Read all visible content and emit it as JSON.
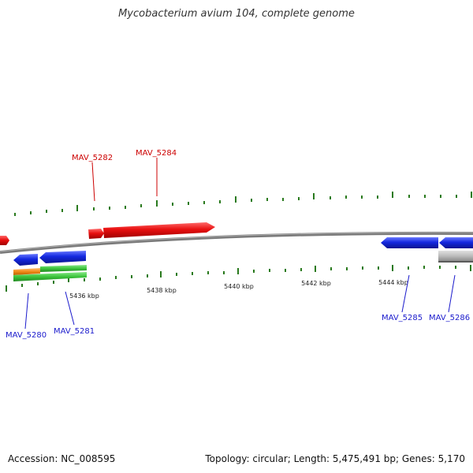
{
  "title": "Mycobacterium avium 104, complete genome",
  "footer": {
    "accession": "Accession: NC_008595",
    "summary": "Topology: circular; Length: 5,475,491 bp; Genes: 5,170"
  },
  "colors": {
    "forward_gene": "#e81010",
    "reverse_gene": "#1428e0",
    "cds_green": "#3cc43c",
    "cds_orange": "#f08a18",
    "cds_gray": "#b8b8b8",
    "backbone": "#8a8a8a",
    "tick": "#2a7a1e",
    "forward_label": "#cc0000",
    "reverse_label": "#1a1acc"
  },
  "scale_labels": [
    "5436 kbp",
    "5438 kbp",
    "5440 kbp",
    "5442 kbp",
    "5444 kbp"
  ],
  "genes": [
    {
      "label": "MAV_5280",
      "strand": "reverse"
    },
    {
      "label": "MAV_5281",
      "strand": "reverse"
    },
    {
      "label": "MAV_5282",
      "strand": "forward"
    },
    {
      "label": "MAV_5284",
      "strand": "forward"
    },
    {
      "label": "MAV_5285",
      "strand": "reverse"
    },
    {
      "label": "MAV_5286",
      "strand": "reverse"
    }
  ]
}
